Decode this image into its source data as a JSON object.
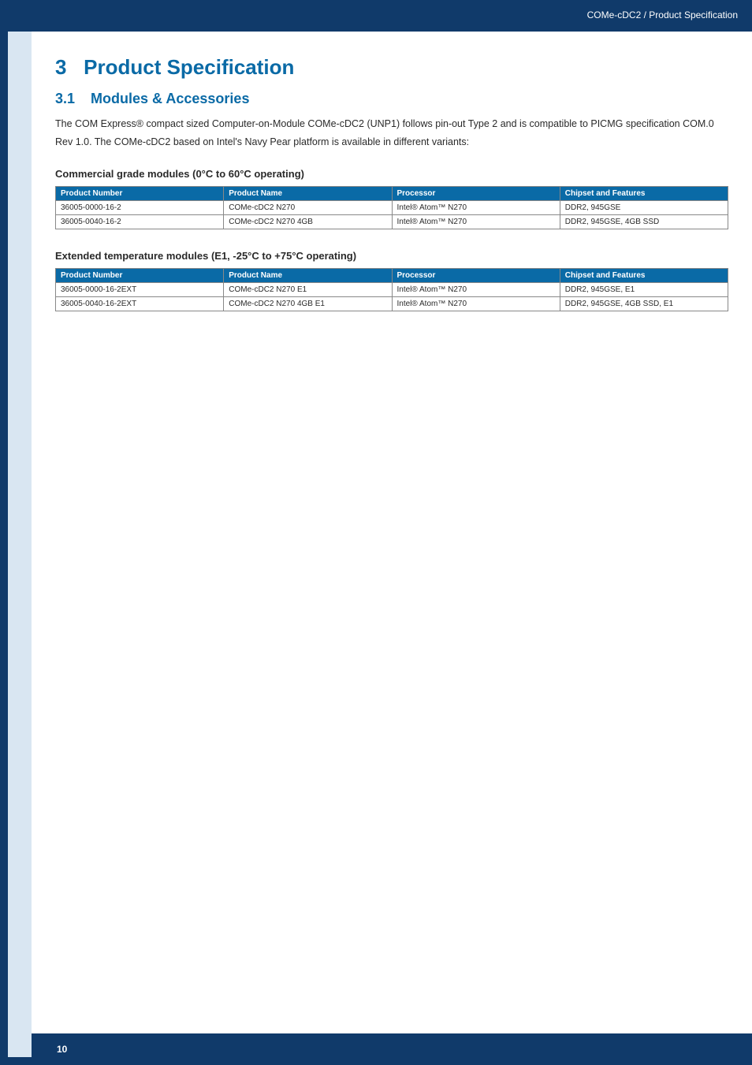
{
  "breadcrumb": "COMe-cDC2 / Product Specification",
  "section_number": "3",
  "section_title": "Product Specification",
  "subsection_number": "3.1",
  "subsection_title": "Modules & Accessories",
  "intro_para": "The COM Express® compact sized Computer-on-Module COMe-cDC2 (UNP1) follows pin-out Type 2 and is compatible to PICMG specification COM.0 Rev 1.0. The COMe-cDC2 based on Intel's Navy Pear platform is available in different variants:",
  "commercial_heading": "Commercial grade modules (0°C to 60°C operating)",
  "extended_heading": "Extended temperature modules (E1, -25°C to +75°C operating)",
  "columns": {
    "c1": "Product Number",
    "c2": "Product Name",
    "c3": "Processor",
    "c4": "Chipset and Features"
  },
  "commercial_rows": [
    {
      "num": "36005-0000-16-2",
      "name": "COMe-cDC2 N270",
      "proc": "Intel® Atom™ N270",
      "feat": "DDR2, 945GSE"
    },
    {
      "num": "36005-0040-16-2",
      "name": "COMe-cDC2 N270 4GB",
      "proc": "Intel® Atom™ N270",
      "feat": "DDR2, 945GSE, 4GB SSD"
    }
  ],
  "extended_rows": [
    {
      "num": "36005-0000-16-2EXT",
      "name": "COMe-cDC2 N270 E1",
      "proc": "Intel® Atom™ N270",
      "feat": "DDR2, 945GSE, E1"
    },
    {
      "num": "36005-0040-16-2EXT",
      "name": "COMe-cDC2 N270 4GB E1",
      "proc": "Intel® Atom™ N270",
      "feat": "DDR2, 945GSE, 4GB SSD, E1"
    }
  ],
  "page_number": "10",
  "colors": {
    "brand_blue_dark": "#103a6a",
    "brand_blue_head": "#0a6aa6",
    "left_inner": "#d9e6f2",
    "text": "#2a2a2a",
    "border": "#888888"
  }
}
